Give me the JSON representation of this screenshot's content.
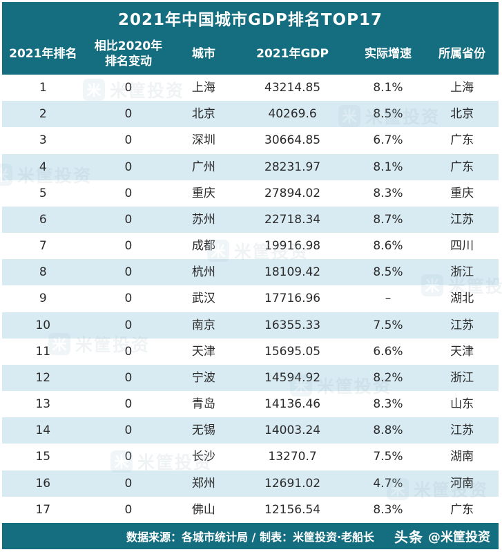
{
  "title": "2021年中国城市GDP排名TOP17",
  "colors": {
    "header_teal": "#156e80",
    "row_alt_blue": "#d8eaf2",
    "row_white": "#ffffff",
    "cell_text": "#2a2a2a",
    "header_text": "#ffffff"
  },
  "header": {
    "rank": "2021年排名",
    "change_l1": "相比2020年",
    "change_l2": "排名变动",
    "city": "城市",
    "gdp": "2021年GDP",
    "growth": "实际增速",
    "province": "所属省份"
  },
  "chart_data": {
    "type": "table",
    "title": "2021年中国城市GDP排名TOP17",
    "columns": [
      "2021年排名",
      "相比2020年排名变动",
      "城市",
      "2021年GDP",
      "实际增速",
      "所属省份"
    ],
    "rows": [
      [
        "1",
        "0",
        "上海",
        "43214.85",
        "8.1%",
        "上海"
      ],
      [
        "2",
        "0",
        "北京",
        "40269.6",
        "8.5%",
        "北京"
      ],
      [
        "3",
        "0",
        "深圳",
        "30664.85",
        "6.7%",
        "广东"
      ],
      [
        "4",
        "0",
        "广州",
        "28231.97",
        "8.1%",
        "广东"
      ],
      [
        "5",
        "0",
        "重庆",
        "27894.02",
        "8.3%",
        "重庆"
      ],
      [
        "6",
        "0",
        "苏州",
        "22718.34",
        "8.7%",
        "江苏"
      ],
      [
        "7",
        "0",
        "成都",
        "19916.98",
        "8.6%",
        "四川"
      ],
      [
        "8",
        "0",
        "杭州",
        "18109.42",
        "8.5%",
        "浙江"
      ],
      [
        "9",
        "0",
        "武汉",
        "17716.96",
        "–",
        "湖北"
      ],
      [
        "10",
        "0",
        "南京",
        "16355.33",
        "7.5%",
        "江苏"
      ],
      [
        "11",
        "0",
        "天津",
        "15695.05",
        "6.6%",
        "天津"
      ],
      [
        "12",
        "0",
        "宁波",
        "14594.92",
        "8.2%",
        "浙江"
      ],
      [
        "13",
        "0",
        "青岛",
        "14136.46",
        "8.3%",
        "山东"
      ],
      [
        "14",
        "0",
        "无锡",
        "14003.24",
        "8.8%",
        "江苏"
      ],
      [
        "15",
        "0",
        "长沙",
        "13270.7",
        "7.5%",
        "湖南"
      ],
      [
        "16",
        "0",
        "郑州",
        "12691.02",
        "4.7%",
        "河南"
      ],
      [
        "17",
        "0",
        "佛山",
        "12156.54",
        "8.3%",
        "广东"
      ]
    ]
  },
  "footer": {
    "source": "数据来源：各城市统计局 / 制表：米筐投资·老船长",
    "brand_logo": "头条",
    "brand_handle": "@米筐投资"
  },
  "watermark": {
    "logo_char": "米",
    "text": "米筐投资"
  }
}
